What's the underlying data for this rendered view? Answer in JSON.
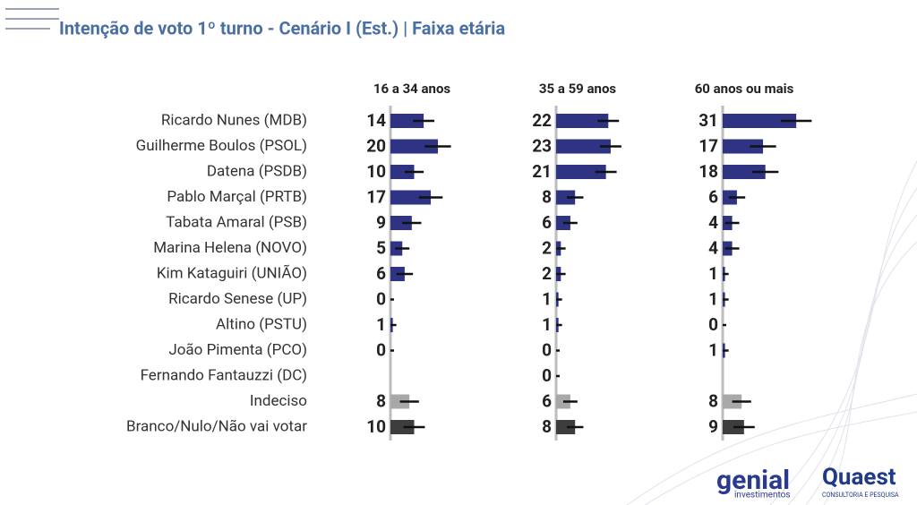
{
  "chart_data": {
    "type": "bar",
    "title": "Intenção de voto 1º turno - Cenário I (Est.) | Faixa etária",
    "categories": [
      "Ricardo Nunes (MDB)",
      "Guilherme Boulos (PSOL)",
      "Datena (PSDB)",
      "Pablo Marçal (PRTB)",
      "Tabata Amaral (PSB)",
      "Marina Helena (NOVO)",
      "Kim Kataguiri (UNIÃO)",
      "Ricardo Senese (UP)",
      "Altino (PSTU)",
      "João Pimenta (PCO)",
      "Fernando Fantauzzi (DC)",
      "Indeciso",
      "Branco/Nulo/Não vai votar"
    ],
    "colors": [
      "#2e3383",
      "#2e3383",
      "#2e3383",
      "#2e3383",
      "#2e3383",
      "#2e3383",
      "#2e3383",
      "#2e3383",
      "#2e3383",
      "#2e3383",
      "#2e3383",
      "#a8a8a8",
      "#3d3d3d"
    ],
    "series": [
      {
        "name": "16 a 34 anos",
        "values": [
          14,
          20,
          10,
          17,
          9,
          5,
          6,
          0,
          1,
          0,
          null,
          8,
          10
        ],
        "errors": [
          4.5,
          5.5,
          4,
          5,
          4,
          3,
          3.5,
          1.5,
          1.5,
          1.5,
          null,
          4,
          4.5
        ]
      },
      {
        "name": "35 a 59 anos",
        "values": [
          22,
          23,
          21,
          8,
          6,
          2,
          2,
          1,
          1,
          0,
          0,
          6,
          8
        ],
        "errors": [
          4.5,
          4.5,
          4.5,
          3.5,
          3,
          2,
          2,
          1.5,
          1.5,
          1.5,
          1.5,
          3,
          3.5
        ]
      },
      {
        "name": "60 anos ou mais",
        "values": [
          31,
          17,
          18,
          6,
          4,
          4,
          1,
          1,
          0,
          1,
          null,
          8,
          9
        ],
        "errors": [
          6.5,
          5.5,
          5.5,
          3.5,
          3,
          3,
          1.5,
          1.5,
          1.5,
          1.5,
          null,
          4,
          4.5
        ]
      }
    ]
  },
  "logos": {
    "genial": "genial",
    "genial_sub": "investimentos",
    "quaest": "Quaest",
    "quaest_sub": "CONSULTORIA E PESQUISA"
  }
}
